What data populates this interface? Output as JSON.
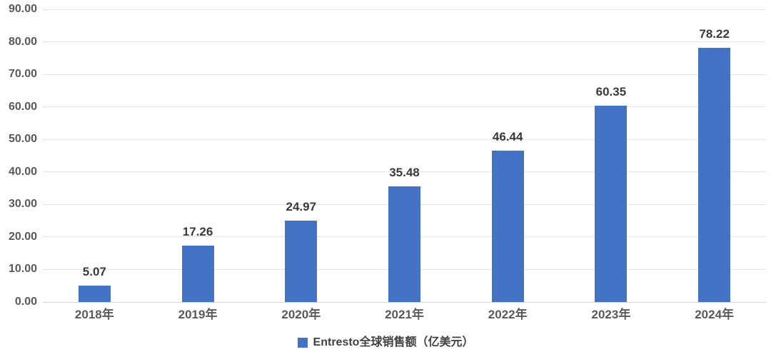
{
  "chart_data": {
    "type": "bar",
    "title": "",
    "categories": [
      "2018年",
      "2019年",
      "2020年",
      "2021年",
      "2022年",
      "2023年",
      "2024年"
    ],
    "values": [
      5.07,
      17.26,
      24.97,
      35.48,
      46.44,
      60.35,
      78.22
    ],
    "value_labels": [
      "5.07",
      "17.26",
      "24.97",
      "35.48",
      "46.44",
      "60.35",
      "78.22"
    ],
    "series": [
      {
        "name": "Entresto全球销售额（亿美元）",
        "values": [
          5.07,
          17.26,
          24.97,
          35.48,
          46.44,
          60.35,
          78.22
        ]
      }
    ],
    "legend": {
      "label": "Entresto全球销售额（亿美元）",
      "position": "bottom",
      "marker": "square-icon"
    },
    "xlabel": "",
    "ylabel": "",
    "ylim": [
      0,
      90
    ],
    "ytick_step": 10,
    "ytick_labels": [
      "0.00",
      "10.00",
      "20.00",
      "30.00",
      "40.00",
      "50.00",
      "60.00",
      "70.00",
      "80.00",
      "90.00"
    ],
    "grid": true,
    "colors": {
      "bar": "#4472c4",
      "gridline": "#e2e2e2",
      "axis_label": "#595959",
      "data_label": "#3a3a3a",
      "legend_label": "#404040"
    }
  }
}
